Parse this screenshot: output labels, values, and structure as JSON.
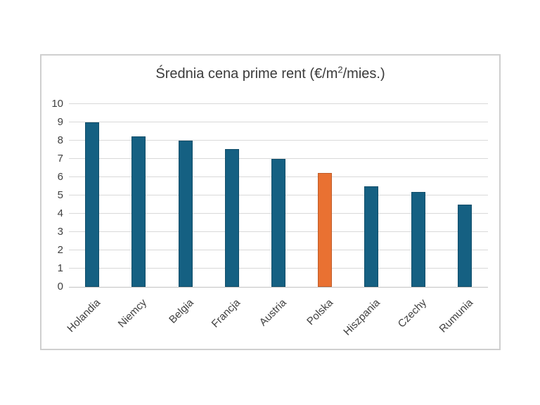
{
  "page": {
    "background_color": "#ffffff",
    "frame_border_color": "#cfcfcf"
  },
  "chart": {
    "title_parts": {
      "pre": "Średnia cena prime rent (€/m",
      "sup": "2",
      "post": "/mies.)"
    }
  },
  "chart_data": {
    "type": "bar",
    "title": "Średnia cena prime rent (€/m²/mies.)",
    "categories": [
      "Holandia",
      "Niemcy",
      "Belgia",
      "Francja",
      "Austria",
      "Polska",
      "Hiszpania",
      "Czechy",
      "Rumunia"
    ],
    "values": [
      9,
      8.25,
      8,
      7.55,
      7,
      6.25,
      5.5,
      5.2,
      4.5
    ],
    "ytick_labels": [
      "0",
      "1",
      "2",
      "3",
      "4",
      "5",
      "6",
      "7",
      "8",
      "9",
      "10"
    ],
    "ylim": [
      0,
      10
    ],
    "ytick_step": 1,
    "grid": true,
    "gridline_color": "#d9d9d9",
    "axis_line_color": "#c3c3c3",
    "default_bar_color": "#156082",
    "highlight_bar_color": "#E97132",
    "highlight_category": "Polska",
    "text_color": "#404040",
    "title_color": "#3b3b3b",
    "xlabel": "",
    "ylabel": "",
    "legend": "none",
    "category_label_rotation_deg": -45
  }
}
